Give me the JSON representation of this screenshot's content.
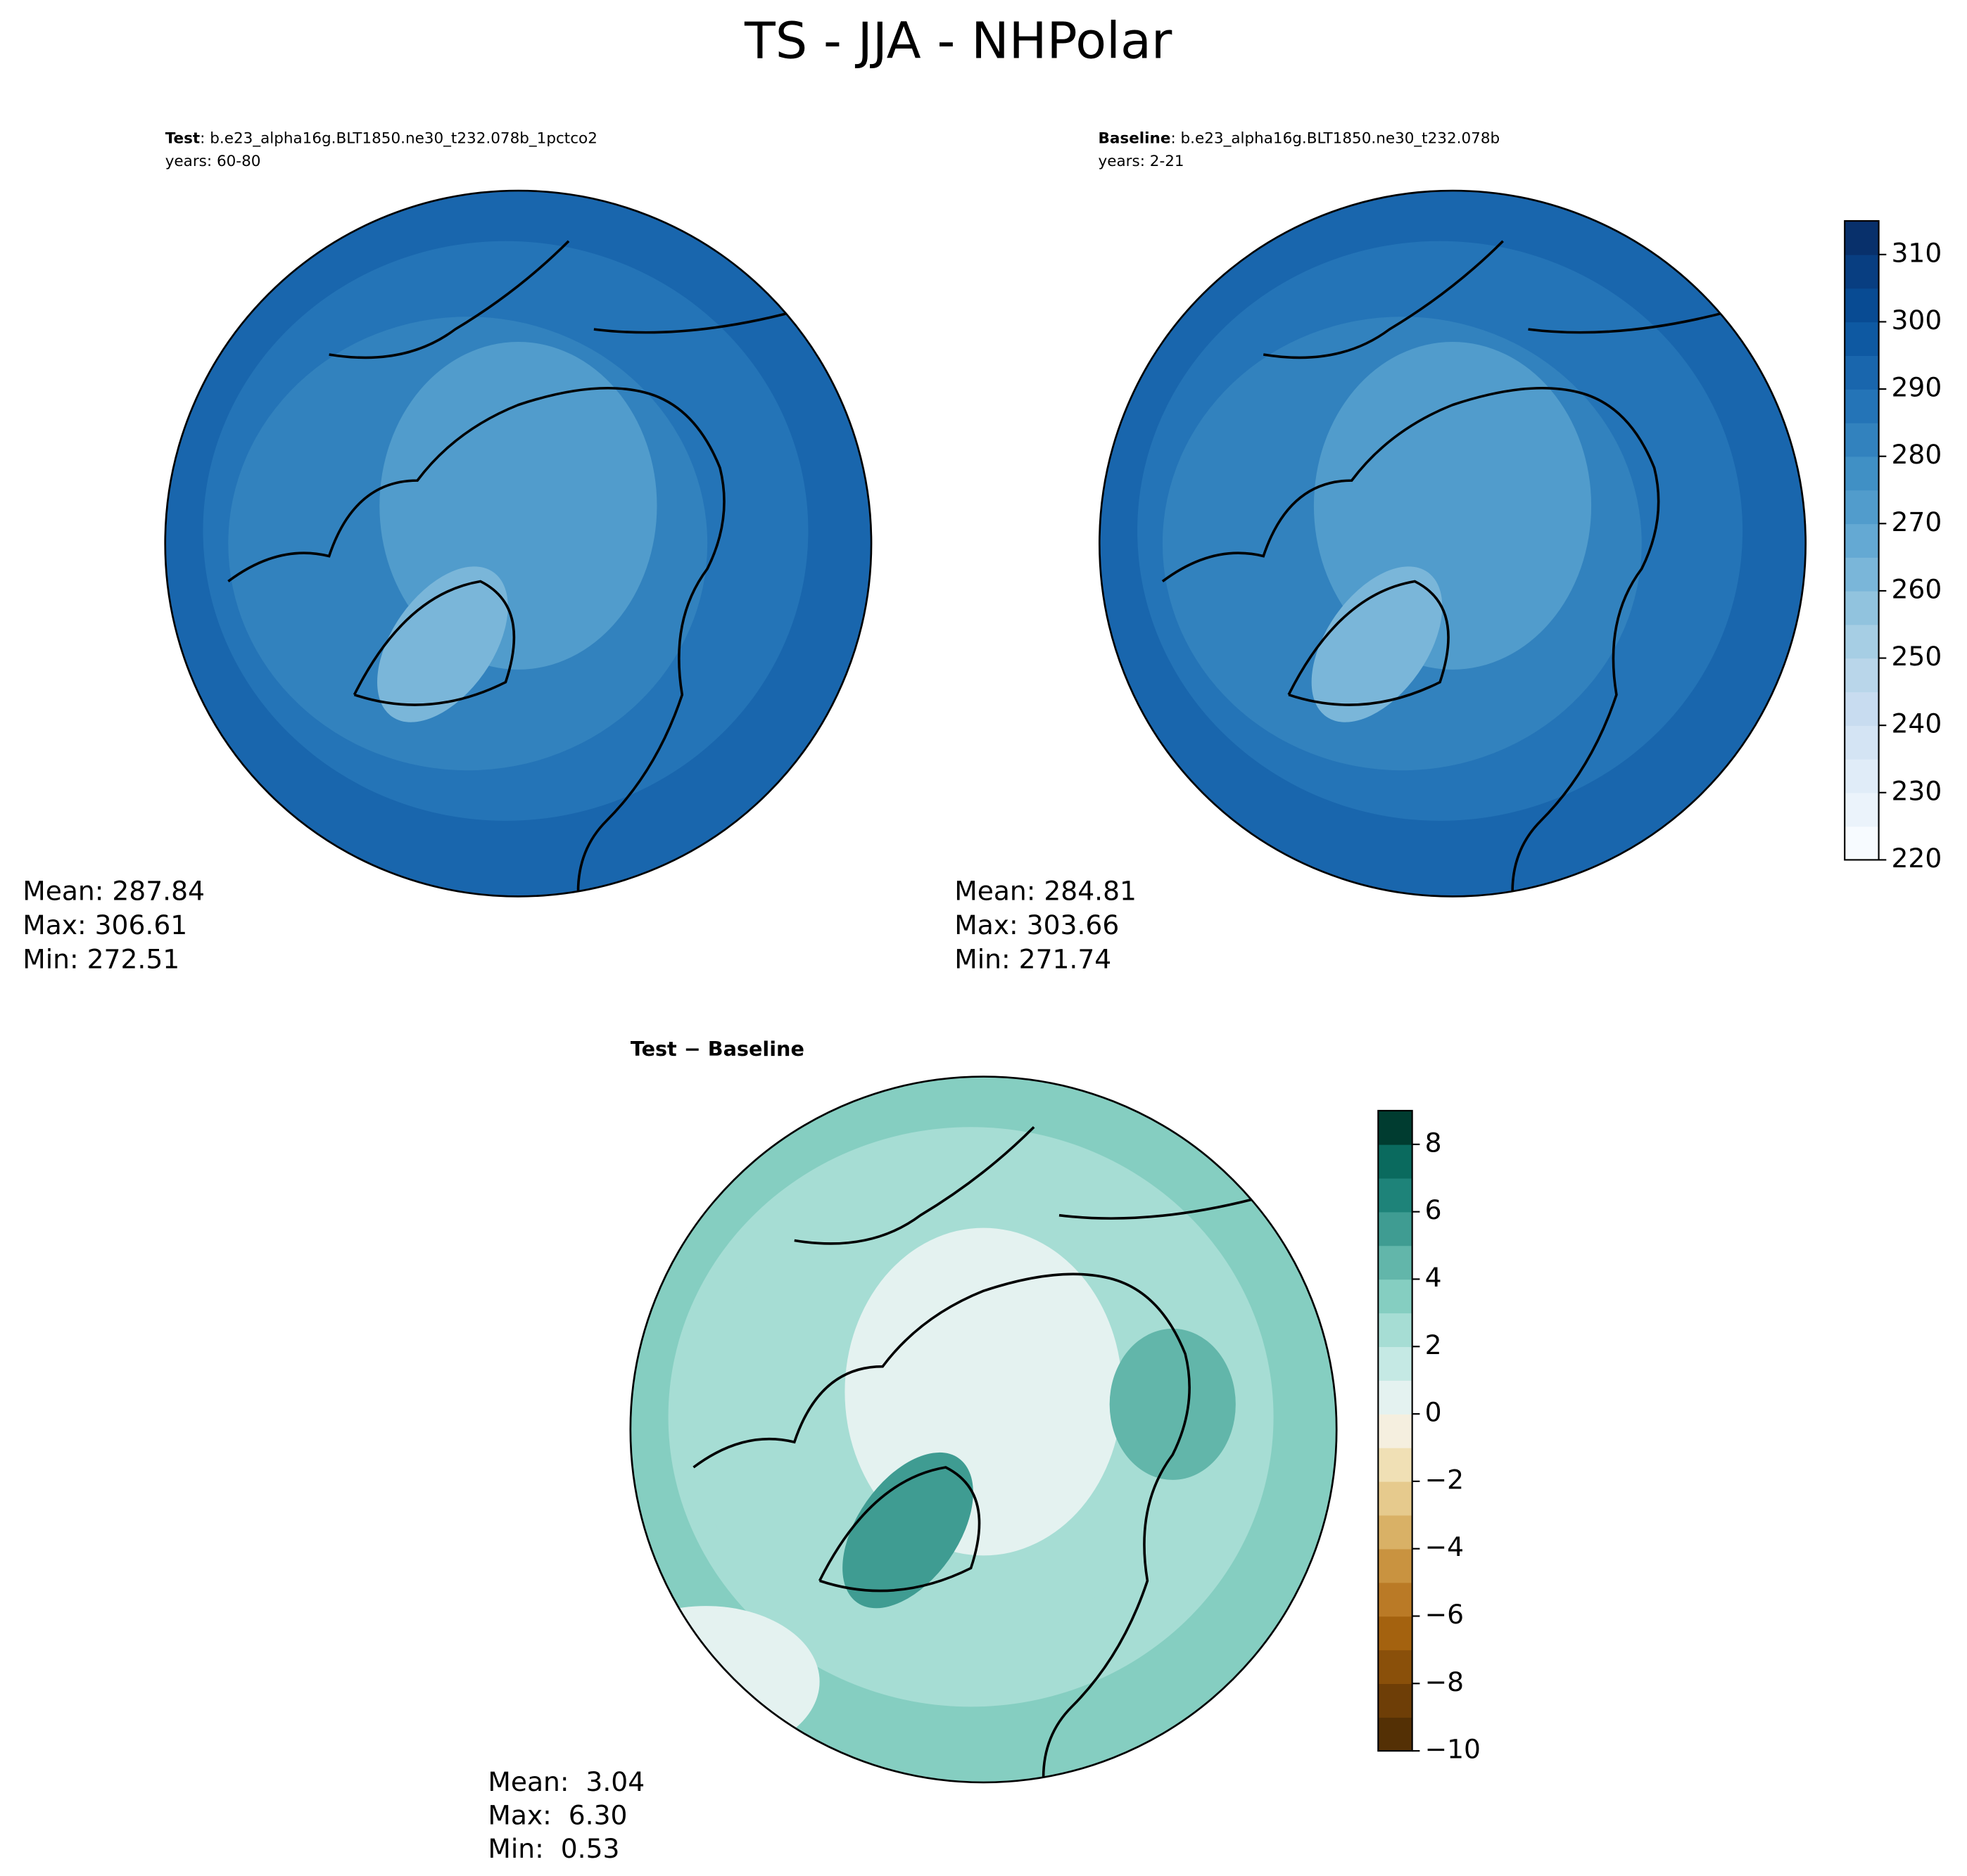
{
  "title": "TS - JJA - NHPolar",
  "chart_data": [
    {
      "type": "map",
      "label": "Test",
      "case": ": b.e23_alpha16g.BLT1850.ne30_t232.078b_1pctco2",
      "years": "years: 60-80",
      "stats": [
        "Mean: 287.84",
        "Max: 306.61",
        "Min: 272.51"
      ]
    },
    {
      "type": "map",
      "label": "Baseline",
      "case": ": b.e23_alpha16g.BLT1850.ne30_t232.078b",
      "years": "years: 2-21",
      "stats": [
        "Mean: 284.81",
        "Max: 303.66",
        "Min: 271.74"
      ],
      "ylim": [
        220,
        315
      ],
      "yticks": [
        220,
        230,
        240,
        250,
        260,
        270,
        280,
        290,
        300,
        310
      ],
      "colors": [
        "#f7fbff",
        "#ebf3fb",
        "#e0ecf8",
        "#d4e4f4",
        "#c8dcf0",
        "#b9d6ea",
        "#a6cee4",
        "#91c3de",
        "#7ab6d9",
        "#64a9d3",
        "#519ccc",
        "#4090c5",
        "#3282be",
        "#2474b7",
        "#1966ad",
        "#0e59a2",
        "#084b93",
        "#083e81",
        "#08306b"
      ]
    },
    {
      "type": "map",
      "label": "Test − Baseline",
      "stats": [
        "Mean:  3.04",
        "Max:  6.30",
        "Min:  0.53"
      ],
      "ylim": [
        -10,
        9
      ],
      "yticks": [
        {
          "value": -10,
          "label": "−10"
        },
        {
          "value": -8,
          "label": "−8"
        },
        {
          "value": -6,
          "label": "−6"
        },
        {
          "value": -4,
          "label": "−4"
        },
        {
          "value": -2,
          "label": "−2"
        },
        0,
        2,
        4,
        6,
        8
      ],
      "colors": [
        "#543005",
        "#6e3e07",
        "#8a500a",
        "#a4620f",
        "#ba7a26",
        "#c99340",
        "#d9b166",
        "#e6ca8d",
        "#f0e0b5",
        "#f5efdf",
        "#e4f2f0",
        "#c5e9e4",
        "#a6ddd4",
        "#85cec1",
        "#62b6aa",
        "#3f9c92",
        "#1e8379",
        "#0a6a5e",
        "#003c30"
      ]
    }
  ]
}
